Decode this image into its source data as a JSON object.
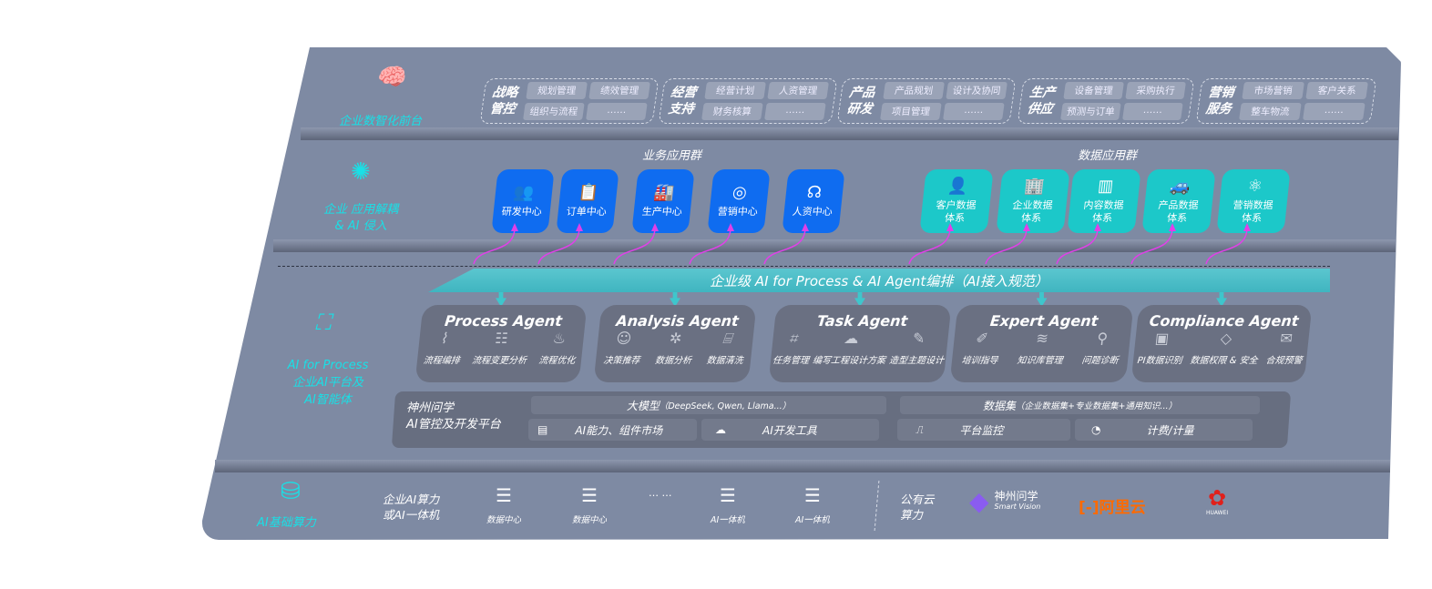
{
  "front": {
    "title": "企业数智化前台",
    "groups": [
      {
        "title": [
          "战略",
          "管控"
        ],
        "items": [
          "规划管理",
          "绩效管理",
          "组织与流程",
          "……"
        ]
      },
      {
        "title": [
          "经营",
          "支持"
        ],
        "items": [
          "经营计划",
          "人资管理",
          "财务核算",
          "……"
        ]
      },
      {
        "title": [
          "产品",
          "研发"
        ],
        "items": [
          "产品规划",
          "设计及协同",
          "项目管理",
          "……"
        ]
      },
      {
        "title": [
          "生产",
          "供应"
        ],
        "items": [
          "设备管理",
          "采购执行",
          "预测与订单",
          "……"
        ]
      },
      {
        "title": [
          "营销",
          "服务"
        ],
        "items": [
          "市场营销",
          "客户关系",
          "整车物流",
          "……"
        ]
      }
    ]
  },
  "decouple": {
    "label": [
      "企业 应用解耦",
      "& AI 侵入"
    ],
    "business": {
      "title": "业务应用群",
      "items": [
        "研发中心",
        "订单中心",
        "生产中心",
        "营销中心",
        "人资中心"
      ]
    },
    "data": {
      "title": "数据应用群",
      "items": [
        [
          "客户数据",
          "体系"
        ],
        [
          "企业数据",
          "体系"
        ],
        [
          "内容数据",
          "体系"
        ],
        [
          "产品数据",
          "体系"
        ],
        [
          "营销数据",
          "体系"
        ]
      ]
    }
  },
  "banner": "企业级 AI for Process & AI Agent编排（AI接入规范）",
  "ai_layer": {
    "label": [
      "AI for Process",
      "企业AI平台及",
      "AI智能体"
    ]
  },
  "agents": [
    {
      "title": "Process Agent",
      "items": [
        "流程编排",
        "流程变更分析",
        "流程优化"
      ]
    },
    {
      "title": "Analysis Agent",
      "items": [
        "决策推荐",
        "数据分析",
        "数据清洗"
      ]
    },
    {
      "title": "Task Agent",
      "items": [
        "任务管理",
        "编写工程设计方案",
        "造型主题设计"
      ]
    },
    {
      "title": "Expert Agent",
      "items": [
        "培训指导",
        "知识库管理",
        "问题诊断"
      ]
    },
    {
      "title": "Compliance Agent",
      "items": [
        "PI数据识别",
        "数据权限 & 安全",
        "合规预警"
      ]
    }
  ],
  "platform": {
    "title": [
      "神州问学",
      "AI管控及开发平台"
    ],
    "model": "大模型",
    "model_detail": "（DeepSeek, Qwen, Llama...）",
    "dataset": "数据集",
    "dataset_detail": "（企业数据集+专业数据集+通用知识...）",
    "tools": [
      "AI能力、组件市场",
      "AI开发工具",
      "平台监控",
      "计费/计量"
    ]
  },
  "compute": {
    "label": "AI基础算力",
    "private": [
      "企业AI算力",
      "或AI一体机"
    ],
    "nodes": [
      "数据中心",
      "数据中心",
      "AI一体机",
      "AI一体机"
    ],
    "ellipsis": "… …",
    "public": [
      "公有云",
      "算力"
    ],
    "vendors": {
      "shenzhou": "神州问学",
      "shenzhou_en": "Smart Vision",
      "aliyun": "阿里云",
      "huawei": "HUAWEI"
    }
  },
  "colors": {
    "panel": "#7e8aa3",
    "accent": "#19e0e6",
    "business": "#0f6cf0",
    "data": "#1cc8c9",
    "arrow": "#e040e8",
    "aliyun": "#ff6a00",
    "huawei": "#e0201b"
  }
}
